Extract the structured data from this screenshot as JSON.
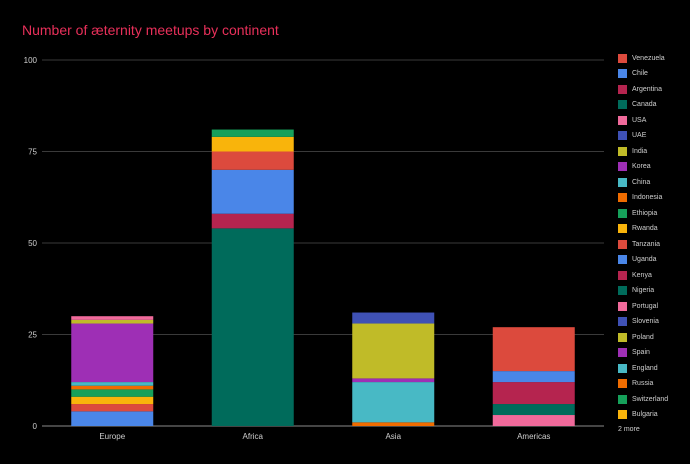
{
  "chart_data": {
    "type": "bar",
    "stacked": true,
    "title": "Number of æternity meetups by continent",
    "xlabel": "",
    "ylabel": "",
    "ylim": [
      0,
      100
    ],
    "yticks": [
      "0",
      "25",
      "50",
      "75",
      "100"
    ],
    "grid": true,
    "legend_position": "right",
    "legend_more": "2 more",
    "categories": [
      "Europe",
      "Africa",
      "Asia",
      "Americas"
    ],
    "series": [
      {
        "name": "Venezuela",
        "color": "#dc4a3d",
        "values": [
          0,
          0,
          0,
          12
        ]
      },
      {
        "name": "Chile",
        "color": "#4a86e8",
        "values": [
          0,
          0,
          0,
          3
        ]
      },
      {
        "name": "Argentina",
        "color": "#b5244f",
        "values": [
          0,
          0,
          0,
          6
        ]
      },
      {
        "name": "Canada",
        "color": "#006b5b",
        "values": [
          0,
          0,
          0,
          3
        ]
      },
      {
        "name": "USA",
        "color": "#f06a9b",
        "values": [
          0,
          0,
          0,
          3
        ]
      },
      {
        "name": "UAE",
        "color": "#3f51b5",
        "values": [
          0,
          0,
          3,
          0
        ]
      },
      {
        "name": "India",
        "color": "#c0bb28",
        "values": [
          0,
          0,
          15,
          0
        ]
      },
      {
        "name": "Korea",
        "color": "#9e2fb5",
        "values": [
          0,
          0,
          1,
          0
        ]
      },
      {
        "name": "China",
        "color": "#48b9c5",
        "values": [
          0,
          0,
          11,
          0
        ]
      },
      {
        "name": "Indonesia",
        "color": "#ef6c00",
        "values": [
          0,
          0,
          1,
          0
        ]
      },
      {
        "name": "Ethiopia",
        "color": "#16a05a",
        "values": [
          0,
          2,
          0,
          0
        ]
      },
      {
        "name": "Rwanda",
        "color": "#f9b40b",
        "values": [
          0,
          4,
          0,
          0
        ]
      },
      {
        "name": "Tanzania",
        "color": "#dc4a3d",
        "values": [
          0,
          5,
          0,
          0
        ]
      },
      {
        "name": "Uganda",
        "color": "#4a86e8",
        "values": [
          0,
          12,
          0,
          0
        ]
      },
      {
        "name": "Kenya",
        "color": "#b5244f",
        "values": [
          0,
          4,
          0,
          0
        ]
      },
      {
        "name": "Nigeria",
        "color": "#006b5b",
        "values": [
          0,
          54,
          0,
          0
        ]
      },
      {
        "name": "Portugal",
        "color": "#f06a9b",
        "values": [
          1,
          0,
          0,
          0
        ]
      },
      {
        "name": "Slovenia",
        "color": "#3f51b5",
        "values": [
          0,
          0,
          0,
          0
        ]
      },
      {
        "name": "Poland",
        "color": "#c0bb28",
        "values": [
          1,
          0,
          0,
          0
        ]
      },
      {
        "name": "Spain",
        "color": "#9e2fb5",
        "values": [
          16,
          0,
          0,
          0
        ]
      },
      {
        "name": "England",
        "color": "#48b9c5",
        "values": [
          1,
          0,
          0,
          0
        ]
      },
      {
        "name": "Russia",
        "color": "#ef6c00",
        "values": [
          1,
          0,
          0,
          0
        ]
      },
      {
        "name": "Switzerland",
        "color": "#16a05a",
        "values": [
          2,
          0,
          0,
          0
        ]
      },
      {
        "name": "Bulgaria",
        "color": "#f9b40b",
        "values": [
          2,
          0,
          0,
          0
        ]
      },
      {
        "name": "",
        "color": "#dc4a3d",
        "values": [
          2,
          0,
          0,
          0
        ]
      },
      {
        "name": "",
        "color": "#4a86e8",
        "values": [
          4,
          0,
          0,
          0
        ]
      }
    ]
  }
}
